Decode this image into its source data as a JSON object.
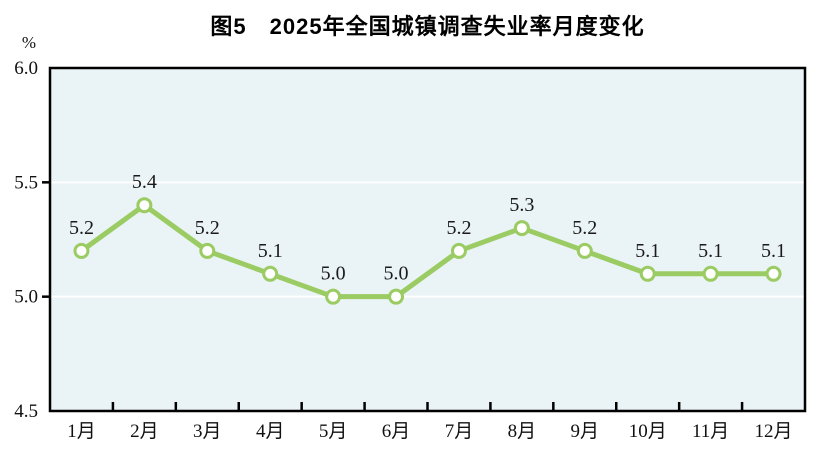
{
  "title": "图5　2025年全国城镇调查失业率月度变化",
  "chart_data": {
    "type": "line",
    "title": "图5　2025年全国城镇调查失业率月度变化",
    "categories": [
      "1月",
      "2月",
      "3月",
      "4月",
      "5月",
      "6月",
      "7月",
      "8月",
      "9月",
      "10月",
      "11月",
      "12月"
    ],
    "values": [
      5.2,
      5.4,
      5.2,
      5.1,
      5.0,
      5.0,
      5.2,
      5.3,
      5.2,
      5.1,
      5.1,
      5.1
    ],
    "point_labels": [
      "5.2",
      "5.4",
      "5.2",
      "5.1",
      "5.0",
      "5.0",
      "5.2",
      "5.3",
      "5.2",
      "5.1",
      "5.1",
      "5.1"
    ],
    "xlabel": "",
    "ylabel": "%",
    "ylim": [
      4.5,
      6.0
    ],
    "y_tick_values": [
      6.0,
      5.5,
      5.0,
      4.5
    ],
    "y_tick_labels": [
      "6.0",
      "5.5",
      "5.0",
      "4.5"
    ],
    "gridlines_at": [
      5.5,
      5.0
    ],
    "grid": "horizontal white lines on tinted plot background",
    "legend": "none",
    "colors": {
      "line": "#9BCB63",
      "marker_fill": "#FFFFFF",
      "marker_stroke": "#9BCB63",
      "plot_background": "#EAF3F6",
      "gridline": "#FFFFFF",
      "axis_frame": "#000000",
      "tick": "#000000",
      "text": "#1A1A1A"
    }
  }
}
